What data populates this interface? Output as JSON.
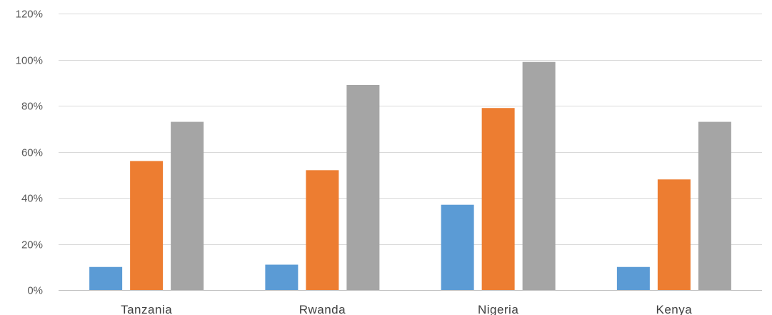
{
  "chart_data": {
    "type": "bar",
    "title": "",
    "xlabel": "",
    "ylabel": "",
    "categories": [
      "Tanzania",
      "Rwanda",
      "Nigeria",
      "Kenya"
    ],
    "series": [
      {
        "color": "#5b9bd5",
        "values": [
          10,
          11,
          37,
          10
        ]
      },
      {
        "color": "#ed7d31",
        "values": [
          56,
          52,
          79,
          48
        ]
      },
      {
        "color": "#a5a5a5",
        "values": [
          73,
          89,
          99,
          73
        ]
      }
    ],
    "ylim": [
      0,
      120
    ],
    "yticks": [
      0,
      20,
      40,
      60,
      80,
      100,
      120
    ],
    "ytick_labels": [
      "0%",
      "20%",
      "40%",
      "60%",
      "80%",
      "100%",
      "120%"
    ],
    "grid": true,
    "legend": "none"
  }
}
